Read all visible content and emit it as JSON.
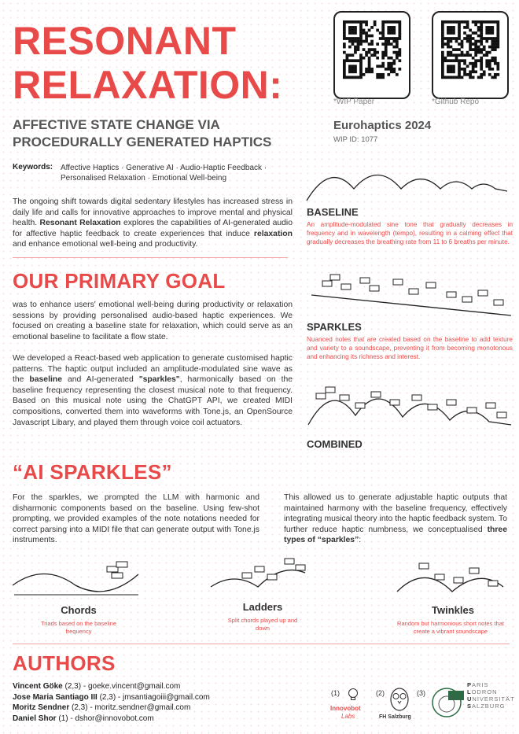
{
  "title": {
    "line1": "RESONANT",
    "line2": "RELAXATION:",
    "sub1": "AFFECTIVE STATE CHANGE VIA",
    "sub2": "PROCEDURALLY GENERATED HAPTICS"
  },
  "qr": {
    "paper_label": "*WIP Paper",
    "repo_label": "*Github Repo"
  },
  "venue": {
    "name": "Eurohaptics 2024",
    "id": "WIP ID: 1077"
  },
  "keywords": {
    "label": "Keywords:",
    "line1": "Affective Haptics · Generative AI · Audio-Haptic Feedback ·",
    "line2": "Personalised Relaxation · Emotional Well-being"
  },
  "intro": {
    "p1": "The ongoing shift towards digital sedentary lifestyles has increased stress in daily life and calls for innovative approaches to improve mental and physical health.",
    "p1_bold": "Resonant Relaxation",
    "p1b": "explores the capabilities of AI-generated audio for affective haptic feedback to create experiences that induce",
    "p1_bold2": "relaxation",
    "p1c": "and enhance emotional well-being and productivity."
  },
  "goal": {
    "title": "OUR PRIMARY GOAL",
    "p1": "was to enhance users' emotional well-being during productivity or relaxation sessions by providing personalised audio-based haptic experiences. We focused on creating a baseline state for relaxation, which could serve as an emotional baseline to facilitate a flow state.",
    "p2a": "We developed a React-based web application to generate customised haptic patterns. The haptic output included an amplitude-modulated sine wave as the",
    "p2_bold1": "baseline",
    "p2b": "and AI-generated",
    "p2_bold2": "\"sparkles\"",
    "p2c": ", harmonically based on the baseline frequency representing the closest musical note to that frequency. Based on this musical note using the ChatGPT API, we created MIDI compositions, converted them into waveforms with Tone.js, an OpenSource Javascript Libary, and played them through voice coil actuators."
  },
  "baseline": {
    "title": "BASELINE",
    "caption": "An amplitude-modulated sine tone that gradually decreases in frequency and in wavelength (tempo), resulting in a calming effect that gradually decreases the breathing rate from 11 to 6 breaths per minute."
  },
  "sparkles_panel": {
    "title": "SPARKLES",
    "caption": "Nuanced notes that are created based on the baseline to add texture and variety to a soundscape, preventing it from becoming monotonous and enhancing its richness and interest."
  },
  "combined": {
    "title": "COMBINED"
  },
  "ai_sparkles": {
    "title": "“AI SPARKLES”",
    "left": "For the sparkles, we prompted the LLM with harmonic and disharmonic components based on the baseline. Using few-shot prompting, we provided examples of the note notations needed for correct parsing into a MIDI file that can generate output with Tone.js instruments.",
    "right_a": "This allowed us to generate adjustable haptic outputs that maintained harmony with the baseline frequency, effectively integrating musical theory into the haptic feedback system. To further reduce haptic numbness, we conceptualised",
    "right_bold": "three types of “sparkles”",
    "right_b": ":"
  },
  "types": {
    "chords": {
      "title": "Chords",
      "caption": "Triads based on the baseline frequency"
    },
    "ladders": {
      "title": "Ladders",
      "caption": "Split chords played up and down"
    },
    "twinkles": {
      "title": "Twinkles",
      "caption": "Random but harmonious short notes that create a vibrant soundscape"
    }
  },
  "authors": {
    "title": "AUTHORS",
    "list": [
      {
        "name": "Vincent Göke",
        "aff": "(2,3) - goeke.vincent@gmail.com"
      },
      {
        "name": "Jose Maria Santiago III",
        "aff": "(2,3) - jmsantiagoiii@gmail.com"
      },
      {
        "name": "Moritz Sendner",
        "aff": "(2,3) - moritz.sendner@gmail.com"
      },
      {
        "name": "Daniel Shor",
        "aff": "(1) - dshor@innovobot.com"
      }
    ]
  },
  "logos": {
    "n1": "(1)",
    "n2": "(2)",
    "n3": "(3)",
    "innovobot": "Innovobot",
    "labs": "Labs",
    "fh": "FH Salzburg",
    "plus_letters": [
      "P",
      "L",
      "U",
      "S"
    ],
    "plus_rest": [
      "ARIS",
      "ODRON",
      "NIVERSITÄT",
      "ALZBURG"
    ]
  },
  "colors": {
    "accent": "#e84a4a",
    "text": "#333333"
  }
}
